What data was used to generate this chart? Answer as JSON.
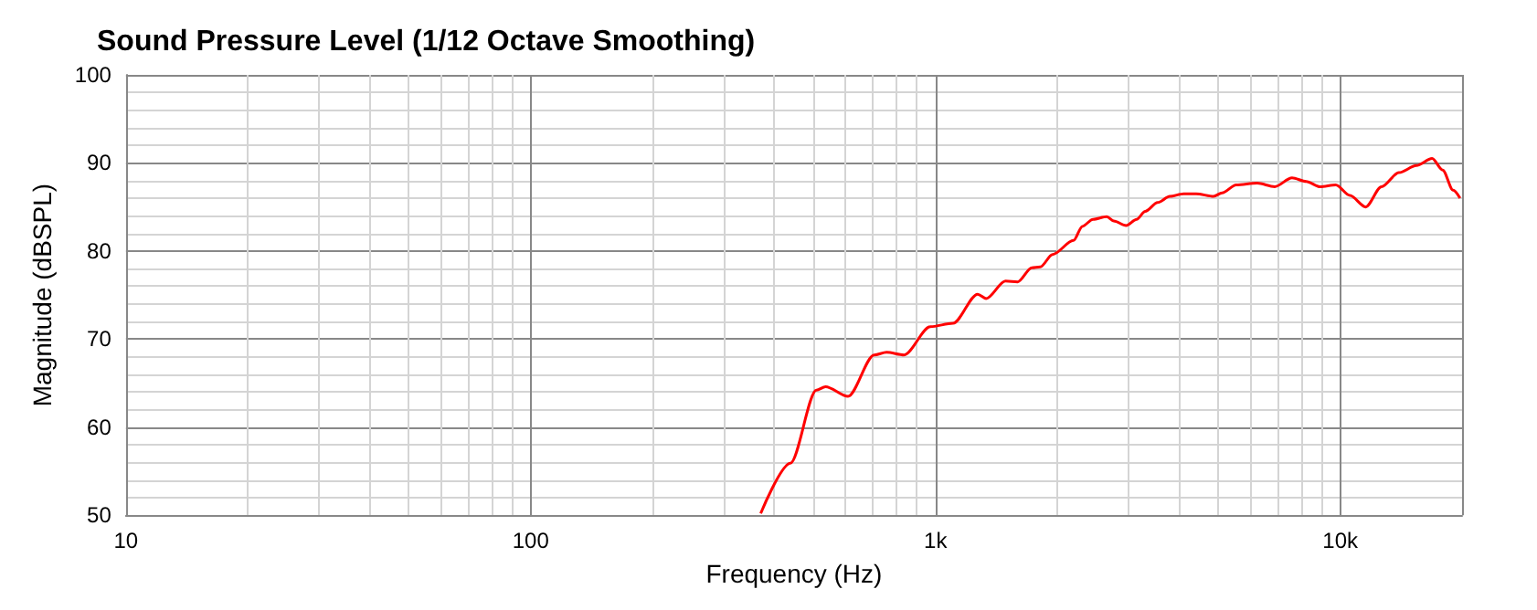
{
  "chart_data": {
    "type": "line",
    "title": "Sound Pressure Level (1/12 Octave Smoothing)",
    "xlabel": "Frequency (Hz)",
    "ylabel": "Magnitude (dBSPL)",
    "log": "x",
    "grid": true,
    "marker": "none",
    "line_style": "solid",
    "xlim": [
      10,
      20000
    ],
    "xticks": [
      10,
      100,
      {
        "value": 1000,
        "label": "1k"
      },
      {
        "value": 10000,
        "label": "10k"
      }
    ],
    "ylim": [
      50,
      100
    ],
    "yticks": [
      50,
      60,
      70,
      80,
      90,
      100
    ],
    "series": [
      {
        "color": "#ff0000",
        "x": [
          370,
          438,
          508,
          535,
          608,
          706,
          757,
          836,
          971,
          1105,
          1271,
          1334,
          1489,
          1596,
          1730,
          1816,
          1946,
          2193,
          2306,
          2449,
          2649,
          2758,
          2958,
          3140,
          3297,
          3540,
          3793,
          4103,
          4406,
          4864,
          5105,
          5533,
          6237,
          6887,
          7603,
          8241,
          8913,
          9750,
          10568,
          11560,
          12647,
          13964,
          15420,
          16866,
          17910,
          19010,
          19770
        ],
        "values": [
          50.2,
          55.9,
          64.2,
          64.6,
          63.5,
          68.2,
          68.5,
          68.2,
          71.4,
          71.8,
          75.1,
          74.6,
          76.6,
          76.5,
          78.1,
          78.2,
          79.6,
          81.2,
          82.8,
          83.6,
          83.9,
          83.4,
          82.9,
          83.6,
          84.5,
          85.5,
          86.2,
          86.5,
          86.5,
          86.2,
          86.6,
          87.5,
          87.7,
          87.3,
          88.3,
          87.9,
          87.3,
          87.5,
          86.3,
          85,
          87.3,
          88.9,
          89.7,
          90.5,
          89.2,
          86.9,
          86
        ]
      }
    ]
  }
}
